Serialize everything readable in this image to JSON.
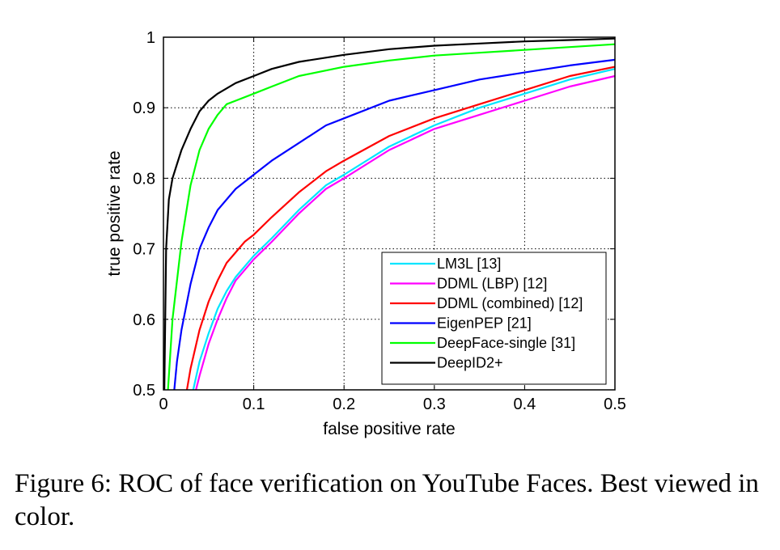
{
  "caption": "Figure 6: ROC of face verification on YouTube Faces. Best viewed in color.",
  "chart_data": {
    "type": "line",
    "title": "",
    "xlabel": "false positive rate",
    "ylabel": "true positive rate",
    "xlim": [
      0,
      0.5
    ],
    "ylim": [
      0.5,
      1
    ],
    "xticks": [
      0,
      0.1,
      0.2,
      0.3,
      0.4,
      0.5
    ],
    "xtick_labels": [
      "0",
      "0.1",
      "0.2",
      "0.3",
      "0.4",
      "0.5"
    ],
    "yticks": [
      0.5,
      0.6,
      0.7,
      0.8,
      0.9,
      1
    ],
    "ytick_labels": [
      "0.5",
      "0.6",
      "0.7",
      "0.8",
      "0.9",
      "1"
    ],
    "grid": true,
    "legend_position": "bottom-right",
    "series": [
      {
        "name": "LM3L [13]",
        "color": "#00e5ff",
        "x": [
          0.033,
          0.04,
          0.05,
          0.06,
          0.07,
          0.08,
          0.09,
          0.1,
          0.12,
          0.15,
          0.18,
          0.2,
          0.25,
          0.3,
          0.35,
          0.4,
          0.45,
          0.5
        ],
        "y": [
          0.5,
          0.54,
          0.58,
          0.615,
          0.64,
          0.66,
          0.675,
          0.69,
          0.715,
          0.755,
          0.79,
          0.805,
          0.845,
          0.875,
          0.9,
          0.92,
          0.94,
          0.955
        ]
      },
      {
        "name": "DDML (LBP)    [12]",
        "color": "#ff00ff",
        "x": [
          0.036,
          0.04,
          0.05,
          0.06,
          0.07,
          0.08,
          0.09,
          0.1,
          0.12,
          0.15,
          0.18,
          0.2,
          0.25,
          0.3,
          0.35,
          0.4,
          0.45,
          0.5
        ],
        "y": [
          0.5,
          0.52,
          0.565,
          0.6,
          0.63,
          0.655,
          0.67,
          0.685,
          0.71,
          0.75,
          0.785,
          0.8,
          0.84,
          0.87,
          0.89,
          0.91,
          0.93,
          0.945
        ]
      },
      {
        "name": "DDML (combined) [12]",
        "color": "#ff0000",
        "x": [
          0.026,
          0.03,
          0.04,
          0.05,
          0.06,
          0.07,
          0.08,
          0.09,
          0.1,
          0.12,
          0.15,
          0.18,
          0.2,
          0.25,
          0.3,
          0.35,
          0.4,
          0.45,
          0.5
        ],
        "y": [
          0.5,
          0.53,
          0.585,
          0.625,
          0.655,
          0.68,
          0.695,
          0.71,
          0.72,
          0.745,
          0.78,
          0.81,
          0.825,
          0.86,
          0.885,
          0.905,
          0.925,
          0.945,
          0.958
        ]
      },
      {
        "name": "EigenPEP [21]",
        "color": "#0000ff",
        "x": [
          0.012,
          0.015,
          0.02,
          0.03,
          0.04,
          0.05,
          0.06,
          0.08,
          0.1,
          0.11,
          0.12,
          0.15,
          0.18,
          0.2,
          0.25,
          0.3,
          0.35,
          0.4,
          0.45,
          0.5
        ],
        "y": [
          0.5,
          0.54,
          0.585,
          0.65,
          0.7,
          0.73,
          0.755,
          0.785,
          0.805,
          0.815,
          0.825,
          0.85,
          0.875,
          0.885,
          0.91,
          0.925,
          0.94,
          0.95,
          0.96,
          0.968
        ]
      },
      {
        "name": "DeepFace-single [31]",
        "color": "#00ff00",
        "x": [
          0.005,
          0.01,
          0.02,
          0.03,
          0.04,
          0.05,
          0.06,
          0.07,
          0.08,
          0.1,
          0.12,
          0.15,
          0.2,
          0.25,
          0.3,
          0.35,
          0.4,
          0.45,
          0.5
        ],
        "y": [
          0.5,
          0.6,
          0.71,
          0.79,
          0.84,
          0.87,
          0.89,
          0.905,
          0.91,
          0.92,
          0.93,
          0.945,
          0.958,
          0.967,
          0.974,
          0.978,
          0.982,
          0.986,
          0.99
        ]
      },
      {
        "name": "DeepID2+",
        "color": "#000000",
        "x": [
          0.001,
          0.003,
          0.006,
          0.01,
          0.015,
          0.02,
          0.03,
          0.04,
          0.05,
          0.06,
          0.08,
          0.1,
          0.12,
          0.15,
          0.2,
          0.25,
          0.3,
          0.35,
          0.4,
          0.45,
          0.5
        ],
        "y": [
          0.5,
          0.7,
          0.77,
          0.8,
          0.82,
          0.84,
          0.87,
          0.895,
          0.91,
          0.92,
          0.935,
          0.945,
          0.955,
          0.965,
          0.975,
          0.983,
          0.988,
          0.991,
          0.994,
          0.996,
          0.998
        ]
      }
    ]
  }
}
